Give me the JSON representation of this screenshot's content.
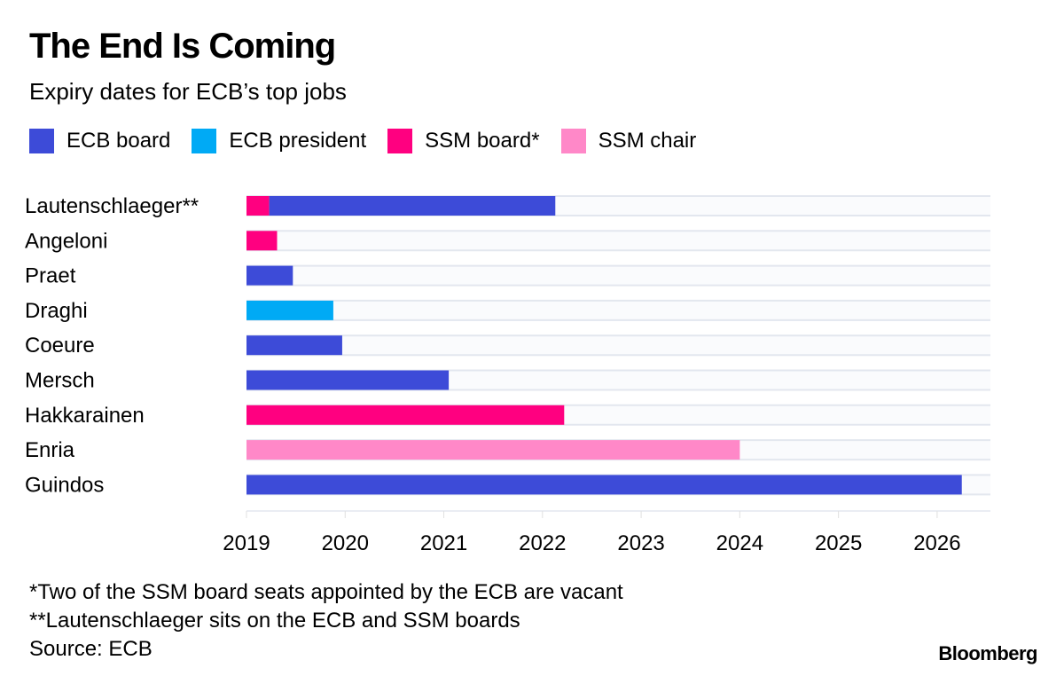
{
  "chart_data": {
    "type": "bar",
    "orientation": "horizontal",
    "stacked": true,
    "title": "The End Is Coming",
    "subtitle": "Expiry dates for ECB’s top jobs",
    "legend": [
      {
        "name": "ECB board",
        "color": "#3d4bd8"
      },
      {
        "name": "ECB president",
        "color": "#00aaf5"
      },
      {
        "name": "SSM board*",
        "color": "#ff0080"
      },
      {
        "name": "SSM chair",
        "color": "#ff88c8"
      }
    ],
    "legend_placement": "top",
    "categories": [
      "Lautenschlaeger**",
      "Angeloni",
      "Praet",
      "Draghi",
      "Coeure",
      "Mersch",
      "Hakkarainen",
      "Enria",
      "Guindos"
    ],
    "segments": [
      [
        {
          "series": "SSM board*",
          "start": 2019.0,
          "end": 2019.23
        },
        {
          "series": "ECB board",
          "start": 2019.23,
          "end": 2022.13
        }
      ],
      [
        {
          "series": "SSM board*",
          "start": 2019.0,
          "end": 2019.31
        }
      ],
      [
        {
          "series": "ECB board",
          "start": 2019.0,
          "end": 2019.47
        }
      ],
      [
        {
          "series": "ECB president",
          "start": 2019.0,
          "end": 2019.88
        }
      ],
      [
        {
          "series": "ECB board",
          "start": 2019.0,
          "end": 2019.97
        }
      ],
      [
        {
          "series": "ECB board",
          "start": 2019.0,
          "end": 2021.05
        }
      ],
      [
        {
          "series": "SSM board*",
          "start": 2019.0,
          "end": 2022.22
        }
      ],
      [
        {
          "series": "SSM chair",
          "start": 2019.0,
          "end": 2024.0
        }
      ],
      [
        {
          "series": "ECB board",
          "start": 2019.0,
          "end": 2026.25
        }
      ]
    ],
    "xlim": [
      2019,
      2026.54
    ],
    "xticks": [
      "2019",
      "2020",
      "2021",
      "2022",
      "2023",
      "2024",
      "2025",
      "2026"
    ],
    "grid": false
  },
  "notes": [
    "*Two of the SSM board seats appointed by the ECB are vacant",
    "**Lautenschlaeger sits on the ECB and SSM boards",
    "Source: ECB"
  ],
  "brand": "Bloomberg"
}
